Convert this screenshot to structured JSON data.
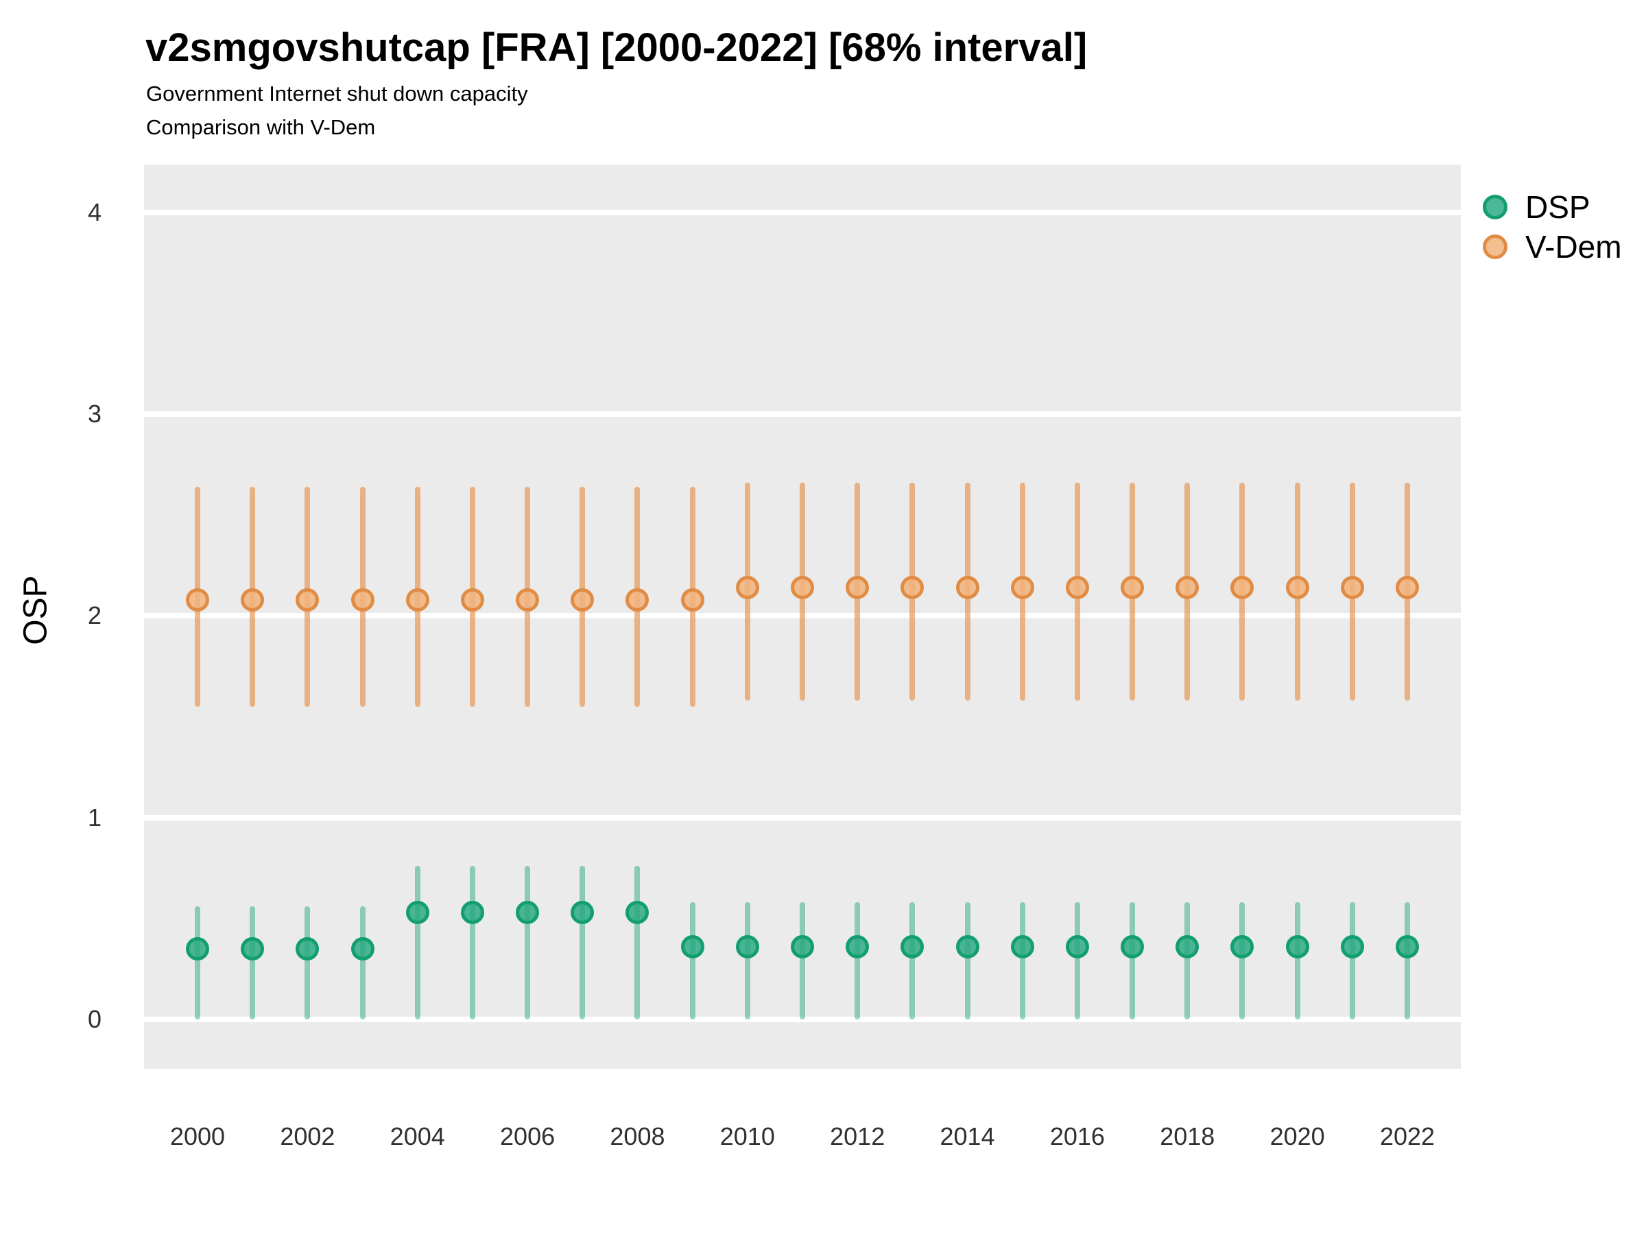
{
  "header": {
    "title": "v2smgovshutcap [FRA] [2000-2022] [68% interval]",
    "subtitle_line1": "Government Internet shut down capacity",
    "subtitle_line2": "Comparison with V-Dem"
  },
  "y_axis": {
    "title": "OSP"
  },
  "legend": {
    "position": "right",
    "items": [
      {
        "label": "DSP",
        "color": "#1fa077"
      },
      {
        "label": "V-Dem",
        "color": "#e2944c"
      }
    ]
  },
  "style": {
    "panel_bg": "#ebebeb",
    "gridline_color": "#ffffff",
    "dsp_line": "rgba(23,162,118,0.45)",
    "dsp_fill": "rgba(38,168,126,0.82)",
    "dsp_ring": "#139e72",
    "vdem_line": "rgba(230,147,77,0.66)",
    "vdem_fill": "rgba(242,180,124,0.85)",
    "vdem_ring": "#e08c44"
  },
  "chart_data": {
    "type": "pointrange",
    "title": "v2smgovshutcap [FRA] [2000-2022] [68% interval]",
    "subtitle": [
      "Government Internet shut down capacity",
      "Comparison with V-Dem"
    ],
    "interval": "68%",
    "country": "FRA",
    "xlabel": "",
    "ylabel": "OSP",
    "ylim": [
      -0.245,
      4.237
    ],
    "y_ticks": [
      0,
      1,
      2,
      3,
      4
    ],
    "x_tick_labels": [
      2000,
      2002,
      2004,
      2006,
      2008,
      2010,
      2012,
      2014,
      2016,
      2018,
      2020,
      2022
    ],
    "grid": "horizontal-major-only",
    "legend_position": "right",
    "x": [
      2000,
      2001,
      2002,
      2003,
      2004,
      2005,
      2006,
      2007,
      2008,
      2009,
      2010,
      2011,
      2012,
      2013,
      2014,
      2015,
      2016,
      2017,
      2018,
      2019,
      2020,
      2021,
      2022
    ],
    "series": [
      {
        "name": "DSP",
        "color": "#1fa077",
        "est": [
          0.35,
          0.35,
          0.35,
          0.35,
          0.53,
          0.53,
          0.53,
          0.53,
          0.53,
          0.36,
          0.36,
          0.36,
          0.36,
          0.36,
          0.36,
          0.36,
          0.36,
          0.36,
          0.36,
          0.36,
          0.36,
          0.36,
          0.36
        ],
        "lo": [
          0.0,
          0.0,
          0.0,
          0.0,
          0.0,
          0.0,
          0.0,
          0.0,
          0.0,
          0.0,
          0.0,
          0.0,
          0.0,
          0.0,
          0.0,
          0.0,
          0.0,
          0.0,
          0.0,
          0.0,
          0.0,
          0.0,
          0.0
        ],
        "hi": [
          0.56,
          0.56,
          0.56,
          0.56,
          0.76,
          0.76,
          0.76,
          0.76,
          0.76,
          0.58,
          0.58,
          0.58,
          0.58,
          0.58,
          0.58,
          0.58,
          0.58,
          0.58,
          0.58,
          0.58,
          0.58,
          0.58,
          0.58
        ]
      },
      {
        "name": "V-Dem",
        "color": "#e2944c",
        "est": [
          2.08,
          2.08,
          2.08,
          2.08,
          2.08,
          2.08,
          2.08,
          2.08,
          2.08,
          2.08,
          2.14,
          2.14,
          2.14,
          2.14,
          2.14,
          2.14,
          2.14,
          2.14,
          2.14,
          2.14,
          2.14,
          2.14,
          2.14
        ],
        "lo": [
          1.55,
          1.55,
          1.55,
          1.55,
          1.55,
          1.55,
          1.55,
          1.55,
          1.55,
          1.55,
          1.58,
          1.58,
          1.58,
          1.58,
          1.58,
          1.58,
          1.58,
          1.58,
          1.58,
          1.58,
          1.58,
          1.58,
          1.58
        ],
        "hi": [
          2.64,
          2.64,
          2.64,
          2.64,
          2.64,
          2.64,
          2.64,
          2.64,
          2.64,
          2.64,
          2.66,
          2.66,
          2.66,
          2.66,
          2.66,
          2.66,
          2.66,
          2.66,
          2.66,
          2.66,
          2.66,
          2.66,
          2.66
        ]
      }
    ]
  }
}
